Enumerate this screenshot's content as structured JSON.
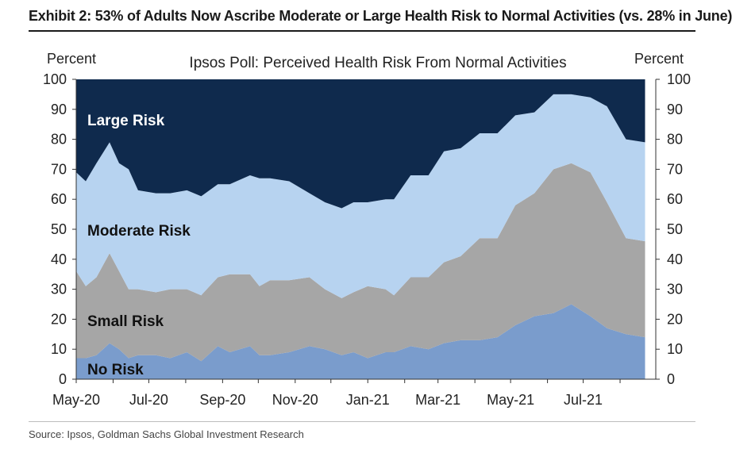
{
  "header": {
    "exhibit_title": "Exhibit 2: 53% of Adults Now Ascribe Moderate or Large Health Risk to Normal Activities (vs. 28% in June)"
  },
  "footer": {
    "source": "Source: Ipsos, Goldman Sachs Global Investment Research"
  },
  "colors": {
    "large_risk": "#0f2a4d",
    "moderate_risk": "#b7d3f0",
    "small_risk": "#a6a6a6",
    "no_risk": "#7a9ccc"
  },
  "chart_data": {
    "type": "area",
    "stacked": true,
    "title": "Ipsos Poll: Perceived Health Risk From Normal Activities",
    "ylabel_left": "Percent",
    "ylabel_right": "Percent",
    "ylim": [
      0,
      100
    ],
    "yticks": [
      0,
      10,
      20,
      30,
      40,
      50,
      60,
      70,
      80,
      90,
      100
    ],
    "xlim": [
      "2020-05-01",
      "2021-08-31"
    ],
    "xticks": [
      {
        "date": "2020-05-01",
        "label": "May-20"
      },
      {
        "date": "2020-07-01",
        "label": "Jul-20"
      },
      {
        "date": "2020-09-01",
        "label": "Sep-20"
      },
      {
        "date": "2020-11-01",
        "label": "Nov-20"
      },
      {
        "date": "2021-01-01",
        "label": "Jan-21"
      },
      {
        "date": "2021-03-01",
        "label": "Mar-21"
      },
      {
        "date": "2021-05-01",
        "label": "May-21"
      },
      {
        "date": "2021-07-01",
        "label": "Jul-21"
      }
    ],
    "grid": false,
    "x": [
      "2020-05-01",
      "2020-05-09",
      "2020-05-18",
      "2020-05-29",
      "2020-06-06",
      "2020-06-14",
      "2020-06-22",
      "2020-07-07",
      "2020-07-19",
      "2020-08-02",
      "2020-08-14",
      "2020-08-28",
      "2020-09-07",
      "2020-09-24",
      "2020-10-02",
      "2020-10-11",
      "2020-10-27",
      "2020-11-13",
      "2020-11-26",
      "2020-12-10",
      "2020-12-20",
      "2021-01-01",
      "2021-01-16",
      "2021-01-23",
      "2021-02-06",
      "2021-02-21",
      "2021-03-06",
      "2021-03-20",
      "2021-04-05",
      "2021-04-20",
      "2021-05-05",
      "2021-05-21",
      "2021-06-06",
      "2021-06-21",
      "2021-07-07",
      "2021-07-21",
      "2021-08-06",
      "2021-08-22"
    ],
    "series": [
      {
        "name": "No Risk",
        "color_key": "no_risk",
        "values": [
          7,
          7,
          8,
          12,
          10,
          7,
          8,
          8,
          7,
          9,
          6,
          11,
          9,
          11,
          8,
          8,
          9,
          11,
          10,
          8,
          9,
          7,
          9,
          9,
          11,
          10,
          12,
          13,
          13,
          14,
          18,
          21,
          22,
          25,
          21,
          17,
          15,
          14
        ]
      },
      {
        "name": "Small Risk",
        "color_key": "small_risk",
        "values": [
          29,
          24,
          26,
          30,
          26,
          23,
          22,
          21,
          23,
          21,
          22,
          23,
          26,
          24,
          23,
          25,
          24,
          23,
          20,
          19,
          20,
          24,
          21,
          19,
          23,
          24,
          27,
          28,
          34,
          33,
          40,
          41,
          48,
          47,
          48,
          42,
          32,
          32
        ]
      },
      {
        "name": "Moderate Risk",
        "color_key": "moderate_risk",
        "values": [
          33,
          35,
          38,
          37,
          36,
          40,
          33,
          33,
          32,
          33,
          33,
          31,
          30,
          33,
          36,
          34,
          33,
          28,
          29,
          30,
          30,
          28,
          30,
          32,
          34,
          34,
          37,
          36,
          35,
          35,
          30,
          27,
          25,
          23,
          25,
          32,
          33,
          33
        ]
      },
      {
        "name": "Large Risk",
        "color_key": "large_risk",
        "values": [
          31,
          34,
          28,
          21,
          28,
          30,
          37,
          38,
          38,
          37,
          39,
          35,
          35,
          32,
          33,
          33,
          34,
          38,
          41,
          43,
          41,
          41,
          40,
          40,
          32,
          32,
          24,
          23,
          18,
          18,
          12,
          11,
          5,
          5,
          6,
          9,
          20,
          21
        ]
      }
    ],
    "series_labels": [
      "Large Risk",
      "Moderate Risk",
      "Small Risk",
      "No Risk"
    ]
  }
}
